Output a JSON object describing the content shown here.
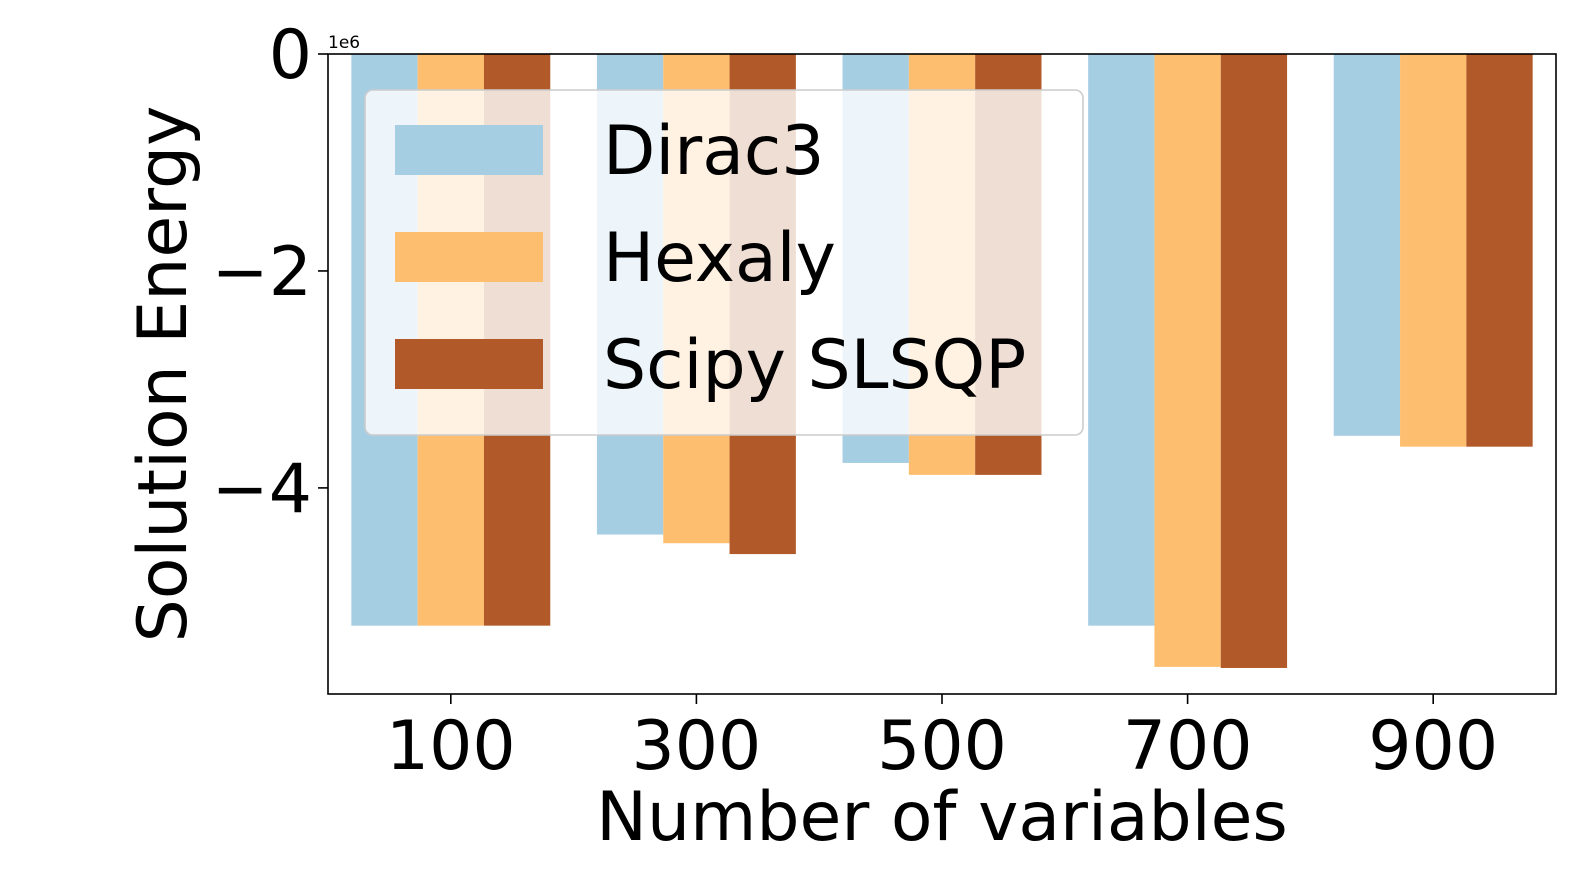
{
  "chart_data": {
    "type": "bar",
    "categories": [
      "100",
      "300",
      "500",
      "700",
      "900"
    ],
    "xlabel": "Number of variables",
    "ylabel": "Solution Energy",
    "y_multiplier_label": "1e6",
    "ylim": [
      -5.9,
      0
    ],
    "yticks": [
      0,
      -2,
      -4
    ],
    "ytick_labels": [
      "0",
      "−2",
      "−4"
    ],
    "legend_position": "upper-left",
    "grid": false,
    "series": [
      {
        "name": "Dirac3",
        "color": "#a6cee3",
        "values": [
          -5.27,
          -4.43,
          -3.77,
          -5.27,
          -3.52
        ]
      },
      {
        "name": "Hexaly",
        "color": "#fdbf6f",
        "values": [
          -5.27,
          -4.51,
          -3.88,
          -5.65,
          -3.62
        ]
      },
      {
        "name": "Scipy SLSQP",
        "color": "#b15928",
        "values": [
          -5.27,
          -4.61,
          -3.88,
          -5.66,
          -3.62
        ]
      }
    ]
  }
}
